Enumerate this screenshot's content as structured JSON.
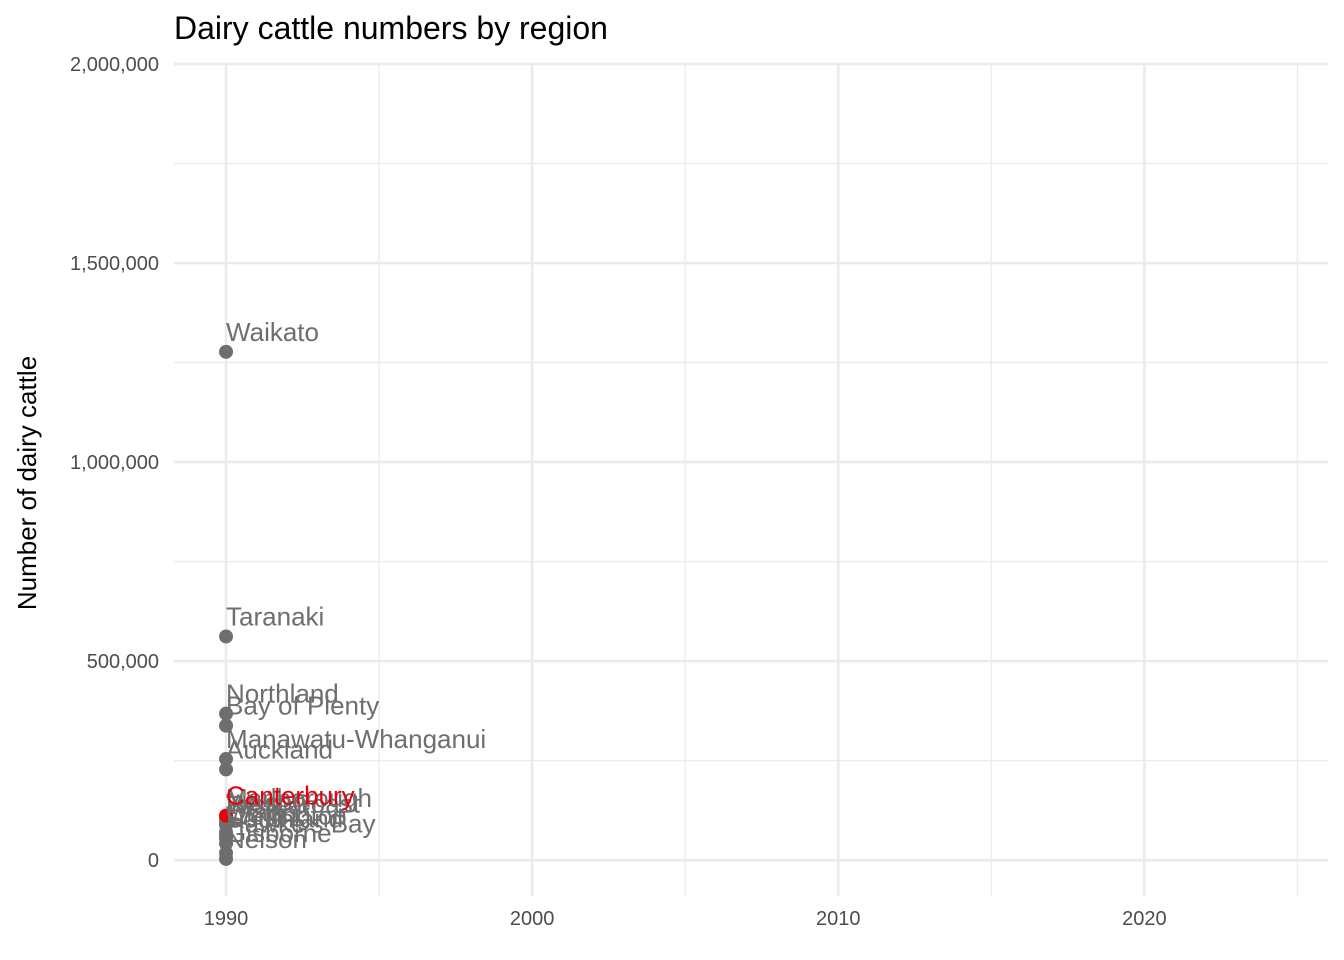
{
  "chart_data": {
    "type": "scatter",
    "title": "Dairy cattle numbers by region",
    "xlabel": "",
    "ylabel": "Number of dairy cattle",
    "xlim": [
      1988.3,
      2026
    ],
    "ylim": [
      -90000,
      2000000
    ],
    "x_ticks": [
      1990,
      2000,
      2010,
      2020
    ],
    "x_minor": [
      1995,
      2005,
      2015,
      2025
    ],
    "y_ticks": [
      0,
      500000,
      1000000,
      1500000,
      2000000
    ],
    "y_tick_labels": [
      "0",
      "500,000",
      "1,000,000",
      "1,500,000",
      "2,000,000"
    ],
    "y_minor": [
      250000,
      750000,
      1250000,
      1750000
    ],
    "grid": true,
    "highlight_color": "#e8000b",
    "default_color": "#6e6e6e",
    "points": [
      {
        "region": "Waikato",
        "year": 1990,
        "value": 1277000,
        "highlight": false
      },
      {
        "region": "Taranaki",
        "year": 1990,
        "value": 562000,
        "highlight": false
      },
      {
        "region": "Northland",
        "year": 1990,
        "value": 368000,
        "highlight": false
      },
      {
        "region": "Bay of Plenty",
        "year": 1990,
        "value": 338000,
        "highlight": false
      },
      {
        "region": "Manawatu-Whanganui",
        "year": 1990,
        "value": 254000,
        "highlight": false
      },
      {
        "region": "Auckland",
        "year": 1990,
        "value": 228000,
        "highlight": false
      },
      {
        "region": "Canterbury",
        "year": 1990,
        "value": 112000,
        "highlight": true
      },
      {
        "region": "Marlborough",
        "year": 1990,
        "value": 106000,
        "highlight": false
      },
      {
        "region": "Nelson",
        "year": 1990,
        "value": 96000,
        "highlight": false
      },
      {
        "region": "West Coast",
        "year": 1990,
        "value": 92000,
        "highlight": false
      },
      {
        "region": "Tasman",
        "year": 1990,
        "value": 88000,
        "highlight": false
      },
      {
        "region": "Otago",
        "year": 1990,
        "value": 70000,
        "highlight": false
      },
      {
        "region": "Wellington",
        "year": 1990,
        "value": 62000,
        "highlight": false
      },
      {
        "region": "Southland",
        "year": 1990,
        "value": 55000,
        "highlight": false
      },
      {
        "region": "Hawke's Bay",
        "year": 1990,
        "value": 42000,
        "highlight": false
      },
      {
        "region": "Gisborne",
        "year": 1990,
        "value": 18000,
        "highlight": false
      },
      {
        "region": "Nelson",
        "year": 1990,
        "value": 3000,
        "highlight": false
      }
    ]
  }
}
